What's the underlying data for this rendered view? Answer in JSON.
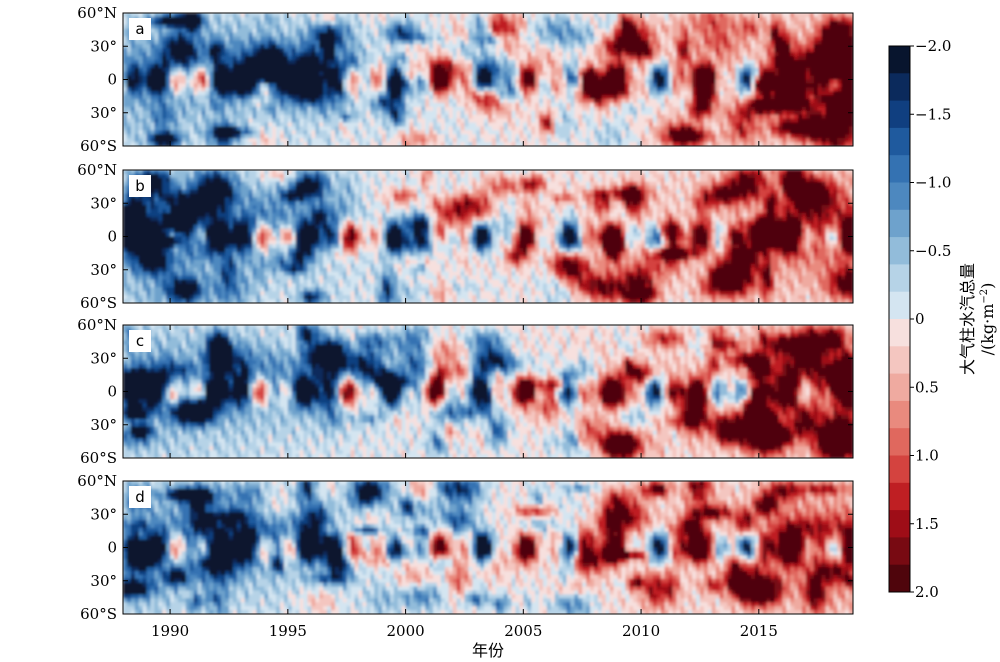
{
  "chart_data": {
    "type": "heatmap",
    "description_free": true,
    "x": {
      "label": "年份",
      "range": [
        1988,
        2019
      ],
      "ticks": [
        1990,
        1995,
        2000,
        2005,
        2010,
        2015
      ],
      "tick_labels": [
        "1990",
        "1995",
        "2000",
        "2005",
        "2010",
        "2015"
      ]
    },
    "y": {
      "range": [
        -60,
        60
      ],
      "ticks": [
        60,
        30,
        0,
        -30,
        -60
      ],
      "tick_labels": [
        "60°N",
        "30°",
        "0",
        "30°",
        "60°S"
      ]
    },
    "panels": [
      {
        "id": "a",
        "label": "a"
      },
      {
        "id": "b",
        "label": "b"
      },
      {
        "id": "c",
        "label": "c"
      },
      {
        "id": "d",
        "label": "d"
      }
    ],
    "colorbar": {
      "label_line1": "大气柱水汽总量",
      "label_line2": "/(kg·m",
      "label_sup": "−2",
      "label_end": ")",
      "range": [
        -2.0,
        2.0
      ],
      "ticks": [
        -2.0,
        -1.5,
        -1.0,
        -0.5,
        0,
        0.5,
        1.0,
        1.5,
        2.0
      ],
      "tick_labels": [
        "−2.0",
        "−1.5",
        "−1.0",
        "−0.5",
        "0",
        "0.5",
        "1.0",
        "1.5",
        "2.0"
      ],
      "levels": 20,
      "colors_top_to_bottom": [
        "#08152e",
        "#0b2a5c",
        "#103f80",
        "#1f5a9e",
        "#3472b2",
        "#4d88bf",
        "#6ea2cc",
        "#92bcda",
        "#b6d3e7",
        "#d4e5f1",
        "#f7e0de",
        "#f4c6c0",
        "#efaaa0",
        "#e98a7e",
        "#e0685e",
        "#d4433f",
        "#bf1f23",
        "#9e0d17",
        "#780a12",
        "#4f050c"
      ]
    }
  }
}
